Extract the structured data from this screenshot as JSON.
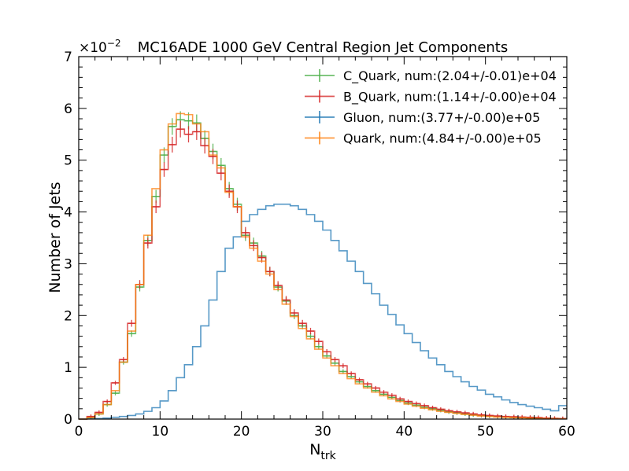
{
  "chart_data": {
    "type": "line",
    "title": "MC16ADE 1000 GeV Central Region Jet Components",
    "xlabel": "N",
    "xlabel_sub": "trk",
    "ylabel": "Number of Jets",
    "y_multiplier": "×10",
    "y_multiplier_exp": "−2",
    "xlim": [
      0,
      60
    ],
    "ylim": [
      0,
      7
    ],
    "xticks": [
      0,
      10,
      20,
      30,
      40,
      50,
      60
    ],
    "yticks": [
      0,
      1,
      2,
      3,
      4,
      5,
      6,
      7
    ],
    "grid": false,
    "legend_position": "top-right",
    "bins_start": 0,
    "bin_width": 1,
    "series": [
      {
        "name": "C_Quark, num:(2.04+/-0.01)e+04",
        "color": "#4daf4a",
        "errorbars": true,
        "values": [
          0,
          0.03,
          0.1,
          0.28,
          0.5,
          1.1,
          1.65,
          2.55,
          3.45,
          4.3,
          5.1,
          5.65,
          5.78,
          5.76,
          5.72,
          5.42,
          5.17,
          4.9,
          4.45,
          4.15,
          3.55,
          3.4,
          3.15,
          2.85,
          2.55,
          2.28,
          2.0,
          1.8,
          1.6,
          1.4,
          1.22,
          1.08,
          0.92,
          0.82,
          0.72,
          0.63,
          0.55,
          0.48,
          0.42,
          0.36,
          0.31,
          0.27,
          0.23,
          0.2,
          0.17,
          0.14,
          0.12,
          0.1,
          0.08,
          0.07,
          0.06,
          0.05,
          0.04,
          0.03,
          0.025,
          0.02,
          0.015,
          0.01,
          0.008,
          0.005
        ]
      },
      {
        "name": "B_Quark, num:(1.14+/-0.00)e+04",
        "color": "#d62728",
        "errorbars": true,
        "values": [
          0,
          0.05,
          0.13,
          0.34,
          0.7,
          1.15,
          1.85,
          2.6,
          3.4,
          4.1,
          4.82,
          5.3,
          5.6,
          5.5,
          5.55,
          5.28,
          5.07,
          4.75,
          4.4,
          4.1,
          3.6,
          3.35,
          3.12,
          2.85,
          2.58,
          2.3,
          2.05,
          1.85,
          1.7,
          1.5,
          1.3,
          1.15,
          1.03,
          0.88,
          0.76,
          0.68,
          0.6,
          0.52,
          0.46,
          0.39,
          0.34,
          0.3,
          0.26,
          0.22,
          0.19,
          0.16,
          0.14,
          0.12,
          0.1,
          0.08,
          0.07,
          0.06,
          0.05,
          0.045,
          0.04,
          0.035,
          0.03,
          0.02,
          0.015,
          0.01
        ]
      },
      {
        "name": "Gluon, num:(3.77+/-0.00)e+05",
        "color": "#1f77b4",
        "errorbars": false,
        "values": [
          0.0,
          0.005,
          0.01,
          0.02,
          0.035,
          0.05,
          0.07,
          0.1,
          0.15,
          0.22,
          0.35,
          0.55,
          0.8,
          1.05,
          1.4,
          1.8,
          2.3,
          2.85,
          3.3,
          3.52,
          3.82,
          3.95,
          4.05,
          4.12,
          4.15,
          4.15,
          4.12,
          4.05,
          3.95,
          3.82,
          3.65,
          3.45,
          3.25,
          3.05,
          2.85,
          2.62,
          2.42,
          2.2,
          2.02,
          1.82,
          1.65,
          1.48,
          1.32,
          1.18,
          1.05,
          0.92,
          0.82,
          0.72,
          0.63,
          0.56,
          0.48,
          0.43,
          0.37,
          0.32,
          0.28,
          0.25,
          0.22,
          0.19,
          0.16,
          0.26
        ]
      },
      {
        "name": "Quark, num:(4.84+/-0.00)e+05",
        "color": "#ff7f0e",
        "errorbars": false,
        "values": [
          0,
          0.03,
          0.1,
          0.28,
          0.55,
          1.1,
          1.7,
          2.6,
          3.55,
          4.45,
          5.2,
          5.7,
          5.9,
          5.88,
          5.7,
          5.55,
          5.1,
          4.85,
          4.38,
          4.1,
          3.52,
          3.3,
          3.05,
          2.8,
          2.5,
          2.22,
          1.98,
          1.75,
          1.55,
          1.35,
          1.18,
          1.03,
          0.88,
          0.78,
          0.68,
          0.6,
          0.52,
          0.45,
          0.39,
          0.34,
          0.29,
          0.25,
          0.21,
          0.18,
          0.15,
          0.13,
          0.11,
          0.09,
          0.075,
          0.06,
          0.05,
          0.04,
          0.035,
          0.03,
          0.025,
          0.02,
          0.015,
          0.01,
          0.008,
          0.005
        ]
      }
    ]
  }
}
